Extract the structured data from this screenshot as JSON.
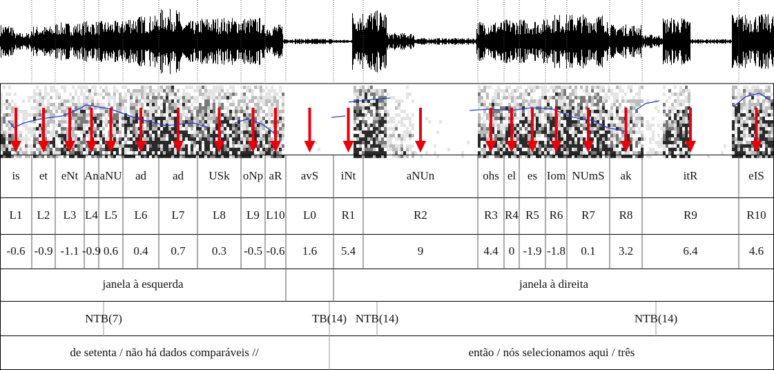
{
  "tiers": {
    "segments": [
      "is",
      "et",
      "eNt",
      "An",
      "aNU",
      "ad",
      "ad",
      "USk",
      "oNp",
      "aR",
      "avS",
      "iNt",
      "aNUn",
      "ohs",
      "el",
      "es",
      "Iom",
      "NUmS",
      "ak",
      "itR",
      "eIS"
    ],
    "labels": [
      "L1",
      "L2",
      "L3",
      "L4",
      "L5",
      "L6",
      "L7",
      "L8",
      "L9",
      "L10",
      "L0",
      "R1",
      "R2",
      "R3",
      "R4",
      "R5",
      "R6",
      "R7",
      "R8",
      "R9",
      "R10"
    ],
    "scores": [
      -0.6,
      -0.9,
      -1.1,
      -0.9,
      0.6,
      0.4,
      0.7,
      0.3,
      -0.5,
      -0.6,
      1.6,
      5.4,
      9,
      4.4,
      0,
      -1.9,
      -1.8,
      0.1,
      3.2,
      6.4,
      4.6
    ],
    "windows": [
      "janela à esquerda",
      "janela à direita"
    ],
    "breaks": [
      "NTB(7)",
      "TB(14)",
      "NTB(14)",
      "NTB(14)"
    ],
    "transcription": [
      "de setenta / não há dados comparáveis //",
      "então / nós selecionamos aqui / três"
    ]
  }
}
